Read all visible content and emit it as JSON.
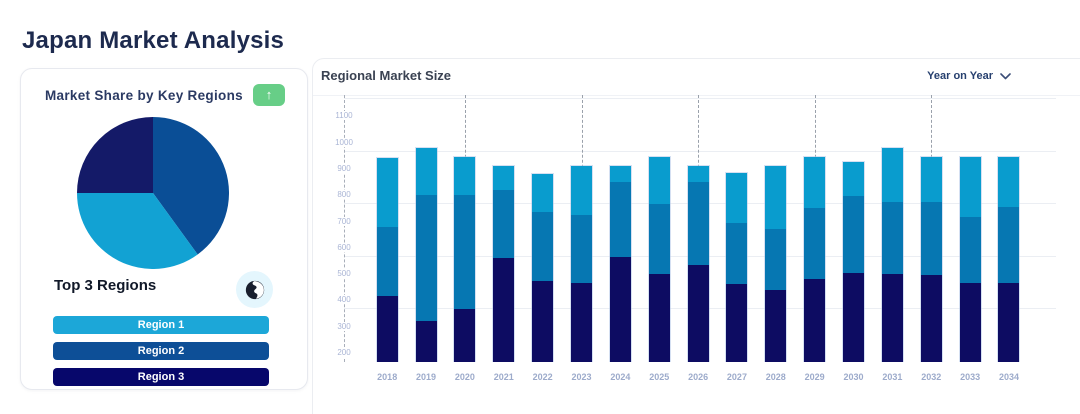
{
  "page": {
    "title": "Japan Market Analysis"
  },
  "left_card": {
    "title": "Market Share by Key Regions",
    "trend_button_icon": "↑",
    "subtitle": "Top 3 Regions",
    "globe_icon": "globe",
    "regions": [
      {
        "label": "Region 1",
        "color": "#1CA7D8"
      },
      {
        "label": "Region 2",
        "color": "#0D4F97"
      },
      {
        "label": "Region 3",
        "color": "#07076B"
      }
    ]
  },
  "right_card": {
    "title": "Regional Market Size",
    "dropdown_label": "Year on Year"
  },
  "chart_data": [
    {
      "type": "pie",
      "title": "Market Share by Key Regions",
      "start_angle_deg": -90,
      "direction": "clockwise",
      "slices": [
        {
          "label": "Region 2",
          "value": 40,
          "color": "#0A4E96"
        },
        {
          "label": "Region 1",
          "value": 35,
          "color": "#12A2D3"
        },
        {
          "label": "Region 3",
          "value": 25,
          "color": "#141A68"
        }
      ]
    },
    {
      "type": "bar",
      "stacked": true,
      "title": "Regional Market Size",
      "baseline": 200,
      "ylim": [
        200,
        1200
      ],
      "yticks": [
        200,
        300,
        400,
        500,
        600,
        700,
        800,
        900,
        1000,
        1100
      ],
      "gridlines_y": [
        400,
        600,
        800,
        1000,
        1200
      ],
      "group_separator_years": [
        "2020",
        "2023",
        "2026",
        "2029",
        "2032"
      ],
      "legend": "none",
      "categories": [
        "2018",
        "2019",
        "2020",
        "2021",
        "2022",
        "2023",
        "2024",
        "2025",
        "2026",
        "2027",
        "2028",
        "2029",
        "2030",
        "2031",
        "2032",
        "2033",
        "2034"
      ],
      "series": [
        {
          "name": "navy-segment",
          "color": "#0D0C62",
          "values": [
            250,
            155,
            200,
            395,
            310,
            300,
            400,
            335,
            370,
            295,
            275,
            315,
            340,
            335,
            330,
            300,
            300
          ]
        },
        {
          "name": "medium-blue-segment",
          "color": "#0677B2",
          "values": [
            265,
            480,
            435,
            260,
            260,
            260,
            285,
            265,
            315,
            235,
            230,
            270,
            290,
            275,
            280,
            250,
            290
          ]
        },
        {
          "name": "light-blue-segment",
          "color": "#099CCE",
          "values": [
            260,
            180,
            145,
            90,
            145,
            185,
            60,
            180,
            60,
            190,
            240,
            195,
            130,
            205,
            170,
            230,
            190
          ]
        }
      ]
    }
  ]
}
